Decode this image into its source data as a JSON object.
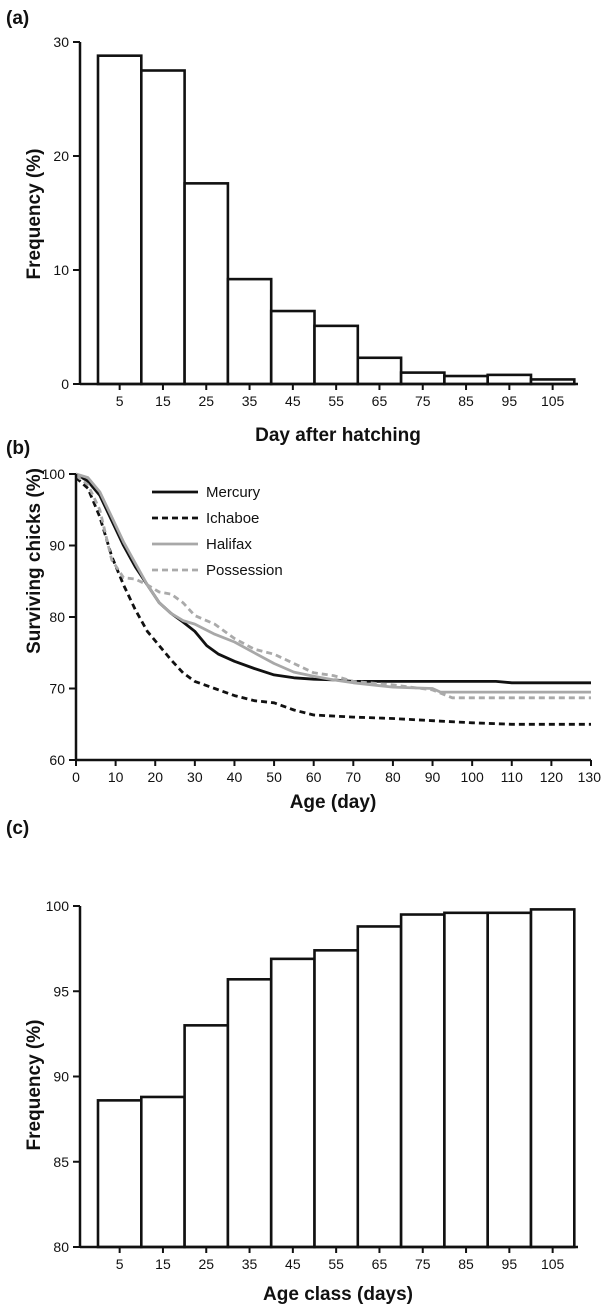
{
  "chart_data": [
    {
      "panel": "(a)",
      "type": "bar",
      "categories": [
        "5",
        "15",
        "25",
        "35",
        "45",
        "55",
        "65",
        "75",
        "85",
        "95",
        "105"
      ],
      "values": [
        28.8,
        27.5,
        17.6,
        9.2,
        6.4,
        5.1,
        2.3,
        1.0,
        0.7,
        0.8,
        0.4
      ],
      "xlabel": "Day after hatching",
      "ylabel": "Frequency (%)",
      "ylim": [
        0,
        30
      ],
      "yticks": [
        0,
        10,
        20,
        30
      ]
    },
    {
      "panel": "(b)",
      "type": "line",
      "xlabel": "Age  (day)",
      "ylabel": "Surviving chicks  (%)",
      "xlim": [
        0,
        130
      ],
      "ylim": [
        60,
        100
      ],
      "xticks": [
        0,
        10,
        20,
        30,
        40,
        50,
        60,
        70,
        80,
        90,
        100,
        110,
        120,
        130
      ],
      "yticks": [
        60,
        70,
        80,
        90,
        100
      ],
      "legend_position": "top-left",
      "series": [
        {
          "name": "Mercury",
          "color": "#111111",
          "dash": "solid",
          "points": [
            [
              0,
              100
            ],
            [
              3,
              99
            ],
            [
              6,
              97
            ],
            [
              9,
              93.5
            ],
            [
              12,
              90
            ],
            [
              15,
              87
            ],
            [
              18,
              84.5
            ],
            [
              21,
              82
            ],
            [
              24,
              80.5
            ],
            [
              27,
              79.3
            ],
            [
              30,
              78
            ],
            [
              33,
              76
            ],
            [
              36,
              74.8
            ],
            [
              40,
              73.8
            ],
            [
              45,
              72.8
            ],
            [
              50,
              71.9
            ],
            [
              55,
              71.5
            ],
            [
              60,
              71.3
            ],
            [
              65,
              71.2
            ],
            [
              70,
              71.0
            ],
            [
              80,
              71.0
            ],
            [
              90,
              71.0
            ],
            [
              100,
              71.0
            ],
            [
              106,
              71.0
            ],
            [
              110,
              70.8
            ],
            [
              130,
              70.8
            ]
          ]
        },
        {
          "name": "Ichaboe",
          "color": "#111111",
          "dash": "dashed",
          "points": [
            [
              0,
              99.5
            ],
            [
              3,
              98
            ],
            [
              6,
              94
            ],
            [
              9,
              88.5
            ],
            [
              12,
              84.5
            ],
            [
              15,
              81
            ],
            [
              18,
              78
            ],
            [
              21,
              76
            ],
            [
              24,
              74
            ],
            [
              27,
              72.2
            ],
            [
              30,
              71
            ],
            [
              35,
              70
            ],
            [
              40,
              69
            ],
            [
              45,
              68.3
            ],
            [
              50,
              68
            ],
            [
              55,
              67
            ],
            [
              60,
              66.3
            ],
            [
              70,
              66
            ],
            [
              80,
              65.8
            ],
            [
              90,
              65.5
            ],
            [
              100,
              65.2
            ],
            [
              110,
              65.0
            ],
            [
              130,
              65.0
            ]
          ]
        },
        {
          "name": "Halifax",
          "color": "#a8a8a8",
          "dash": "solid",
          "points": [
            [
              0,
              100
            ],
            [
              3,
              99.5
            ],
            [
              6,
              97.5
            ],
            [
              9,
              94
            ],
            [
              12,
              90.5
            ],
            [
              15,
              87.5
            ],
            [
              18,
              84.5
            ],
            [
              21,
              82
            ],
            [
              24,
              80.5
            ],
            [
              27,
              79.5
            ],
            [
              30,
              79
            ],
            [
              35,
              77.6
            ],
            [
              40,
              76.5
            ],
            [
              45,
              75
            ],
            [
              50,
              73.5
            ],
            [
              55,
              72.3
            ],
            [
              60,
              71.7
            ],
            [
              65,
              71.2
            ],
            [
              70,
              70.8
            ],
            [
              80,
              70.2
            ],
            [
              90,
              70
            ],
            [
              92,
              69.5
            ],
            [
              100,
              69.5
            ],
            [
              110,
              69.5
            ],
            [
              130,
              69.5
            ]
          ]
        },
        {
          "name": "Possession",
          "color": "#aaaaaa",
          "dash": "dashed",
          "points": [
            [
              0,
              99.8
            ],
            [
              3,
              98.5
            ],
            [
              6,
              95
            ],
            [
              9,
              88
            ],
            [
              12,
              85.5
            ],
            [
              15,
              85.3
            ],
            [
              18,
              84.5
            ],
            [
              21,
              83.5
            ],
            [
              24,
              83.2
            ],
            [
              27,
              82
            ],
            [
              30,
              80.2
            ],
            [
              35,
              79
            ],
            [
              40,
              77
            ],
            [
              45,
              75.5
            ],
            [
              50,
              74.8
            ],
            [
              55,
              73.5
            ],
            [
              60,
              72.2
            ],
            [
              65,
              71.8
            ],
            [
              70,
              71
            ],
            [
              80,
              70.5
            ],
            [
              90,
              69.8
            ],
            [
              95,
              68.7
            ],
            [
              100,
              68.7
            ],
            [
              110,
              68.7
            ],
            [
              130,
              68.7
            ]
          ]
        }
      ]
    },
    {
      "panel": "(c)",
      "type": "bar",
      "categories": [
        "5",
        "15",
        "25",
        "35",
        "45",
        "55",
        "65",
        "75",
        "85",
        "95",
        "105"
      ],
      "values": [
        88.6,
        88.8,
        93.0,
        95.7,
        96.9,
        97.4,
        98.8,
        99.5,
        99.6,
        99.6,
        99.8
      ],
      "xlabel": "Age class (days)",
      "ylabel": "Frequency (%)",
      "ylim": [
        80,
        100
      ],
      "yticks": [
        80,
        85,
        90,
        95,
        100
      ]
    }
  ]
}
